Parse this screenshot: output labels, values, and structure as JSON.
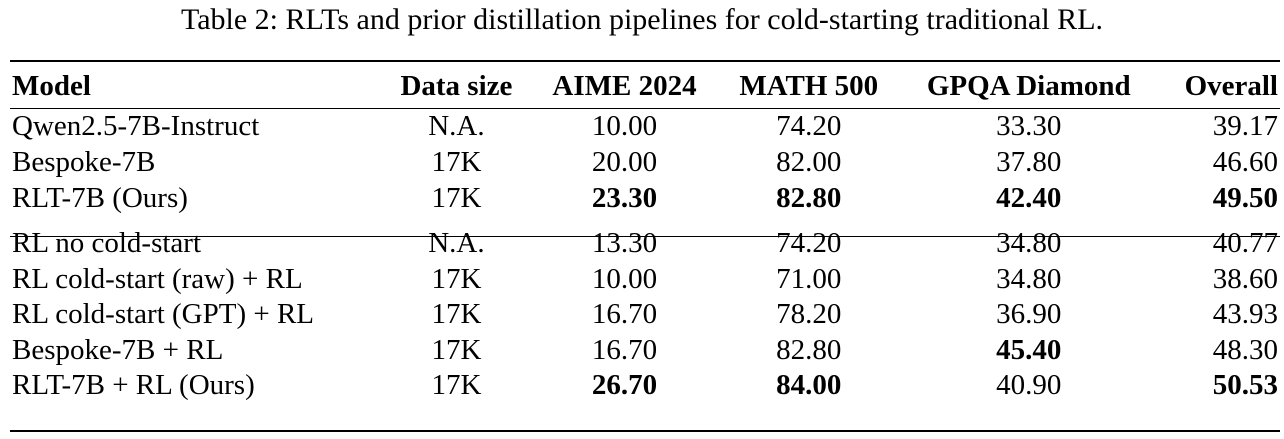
{
  "caption": "Table 2: RLTs and prior distillation pipelines for cold-starting traditional RL.",
  "headers": [
    "Model",
    "Data size",
    "AIME 2024",
    "MATH 500",
    "GPQA Diamond",
    "Overall"
  ],
  "group1": [
    {
      "cells": [
        "Qwen2.5-7B-Instruct",
        "N.A.",
        "10.00",
        "74.20",
        "33.30",
        "39.17"
      ],
      "bold": [
        false,
        false,
        false,
        false,
        false,
        false
      ]
    },
    {
      "cells": [
        "Bespoke-7B",
        "17K",
        "20.00",
        "82.00",
        "37.80",
        "46.60"
      ],
      "bold": [
        false,
        false,
        false,
        false,
        false,
        false
      ]
    },
    {
      "cells": [
        "RLT-7B (Ours)",
        "17K",
        "23.30",
        "82.80",
        "42.40",
        "49.50"
      ],
      "bold": [
        false,
        false,
        true,
        true,
        true,
        true
      ]
    }
  ],
  "group2": [
    {
      "cells": [
        "RL no cold-start",
        "N.A.",
        "13.30",
        "74.20",
        "34.80",
        "40.77"
      ],
      "bold": [
        false,
        false,
        false,
        false,
        false,
        false
      ]
    },
    {
      "cells": [
        "RL cold-start (raw) + RL",
        "17K",
        "10.00",
        "71.00",
        "34.80",
        "38.60"
      ],
      "bold": [
        false,
        false,
        false,
        false,
        false,
        false
      ]
    },
    {
      "cells": [
        "RL cold-start (GPT) + RL",
        "17K",
        "16.70",
        "78.20",
        "36.90",
        "43.93"
      ],
      "bold": [
        false,
        false,
        false,
        false,
        false,
        false
      ]
    },
    {
      "cells": [
        "Bespoke-7B + RL",
        "17K",
        "16.70",
        "82.80",
        "45.40",
        "48.30"
      ],
      "bold": [
        false,
        false,
        false,
        false,
        true,
        false
      ]
    },
    {
      "cells": [
        "RLT-7B + RL (Ours)",
        "17K",
        "26.70",
        "84.00",
        "40.90",
        "50.53"
      ],
      "bold": [
        false,
        false,
        true,
        true,
        false,
        true
      ]
    }
  ]
}
